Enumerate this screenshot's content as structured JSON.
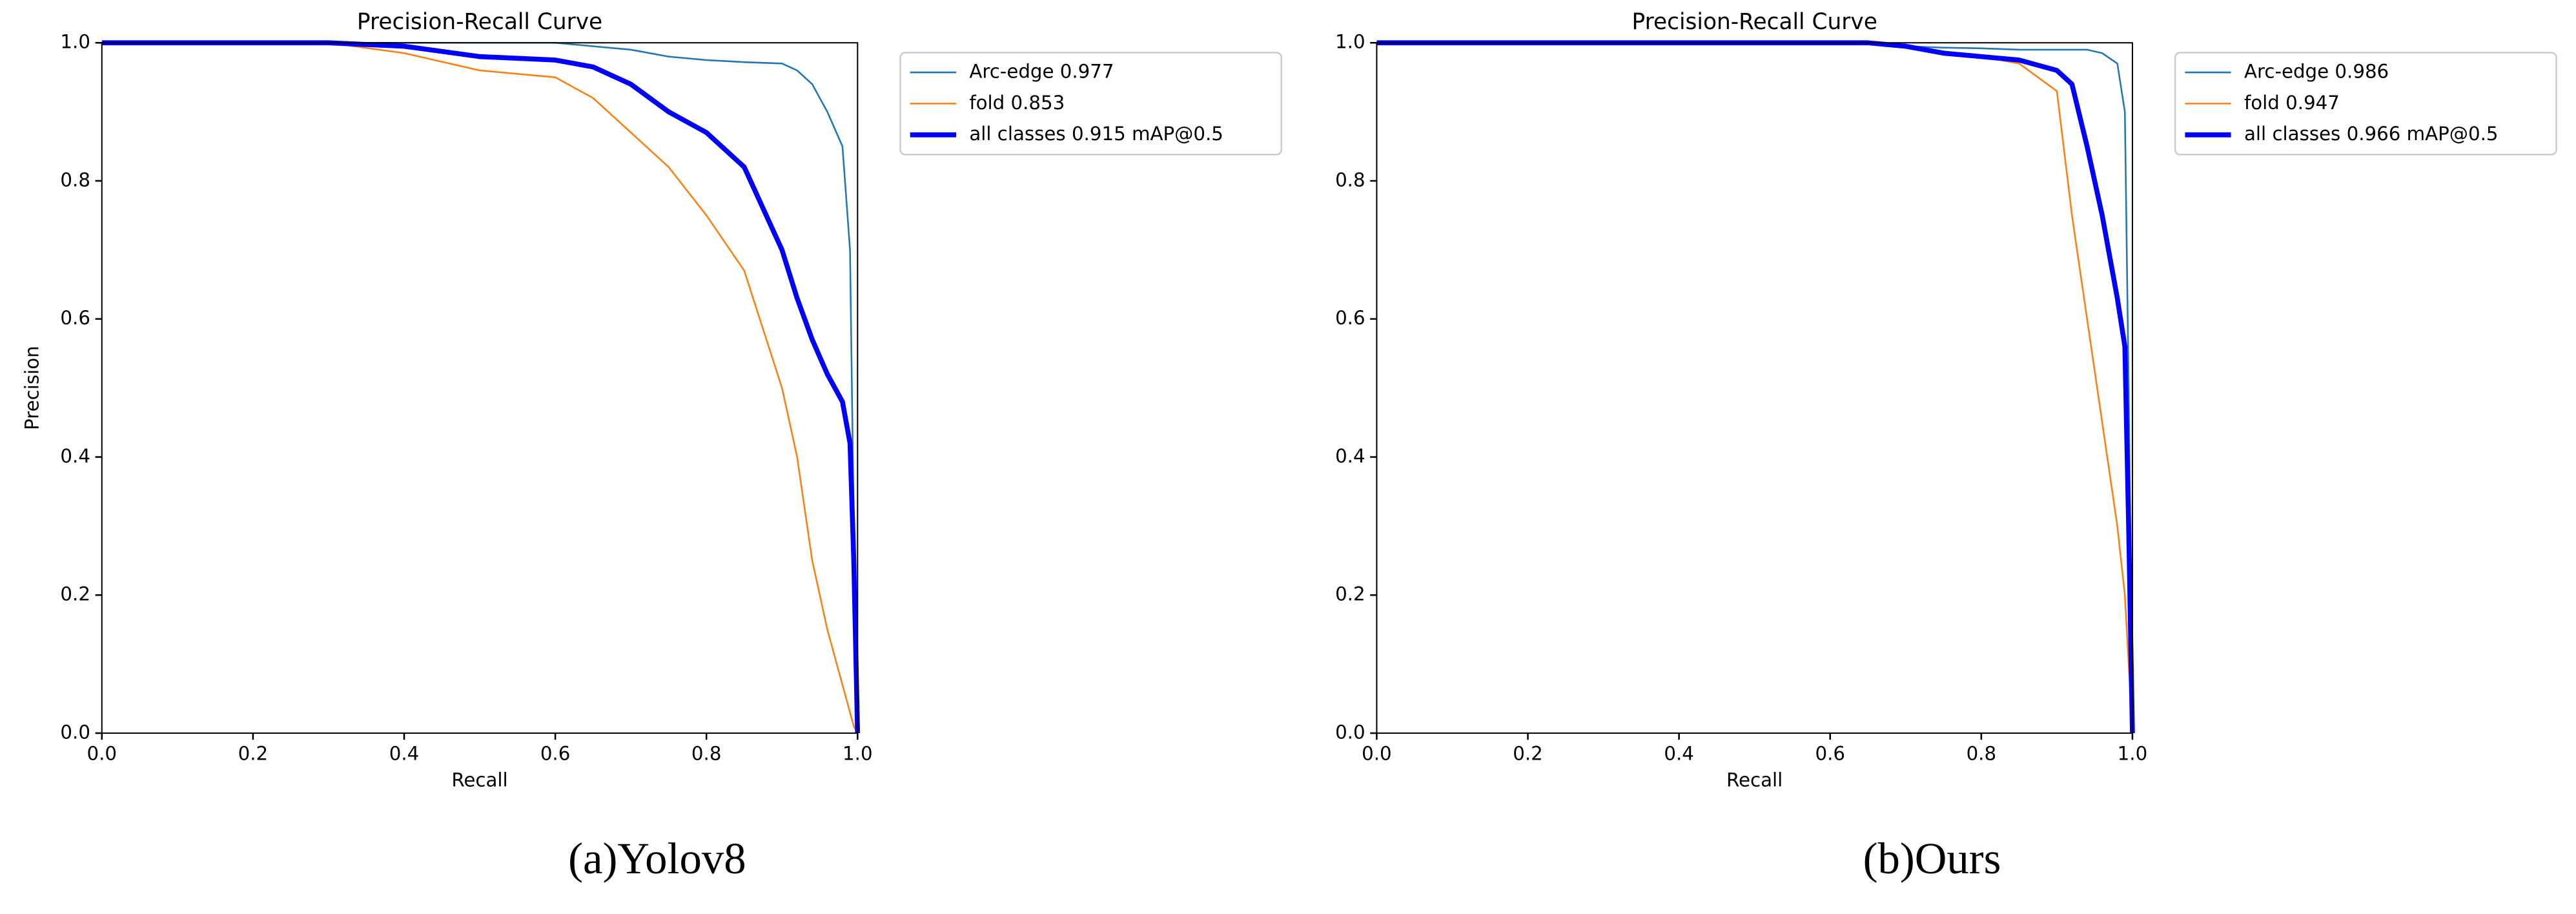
{
  "chart_data": [
    {
      "type": "line",
      "title": "Precision-Recall Curve",
      "xlabel": "Recall",
      "ylabel": "Precision",
      "caption": "(a)Yolov8",
      "x": [
        0,
        0.1,
        0.2,
        0.3,
        0.4,
        0.5,
        0.6,
        0.65,
        0.7,
        0.75,
        0.8,
        0.85,
        0.9,
        0.92,
        0.94,
        0.96,
        0.98,
        0.99,
        0.995,
        1.0
      ],
      "series": [
        {
          "name": "Arc-edge 0.977",
          "color": "#1f77b4",
          "width": 1,
          "values": [
            1,
            1,
            1,
            1,
            1,
            1,
            1,
            0.995,
            0.99,
            0.98,
            0.975,
            0.972,
            0.97,
            0.96,
            0.94,
            0.9,
            0.85,
            0.7,
            0.3,
            0
          ]
        },
        {
          "name": "fold 0.853",
          "color": "#ff7f0e",
          "width": 1,
          "values": [
            1,
            1,
            1,
            1,
            0.985,
            0.96,
            0.95,
            0.92,
            0.87,
            0.82,
            0.75,
            0.67,
            0.5,
            0.4,
            0.25,
            0.15,
            0.07,
            0.03,
            0.01,
            0
          ]
        },
        {
          "name": "all classes 0.915 mAP@0.5",
          "color": "#0000ff",
          "width": 3,
          "values": [
            1,
            1,
            1,
            1,
            0.995,
            0.98,
            0.975,
            0.965,
            0.94,
            0.9,
            0.87,
            0.82,
            0.7,
            0.63,
            0.57,
            0.52,
            0.48,
            0.42,
            0.25,
            0
          ]
        }
      ],
      "xlim": [
        0,
        1
      ],
      "ylim": [
        0,
        1
      ],
      "xticks": [
        {
          "value": 0,
          "label": "0.0"
        },
        0.2,
        0.4,
        0.6,
        0.8,
        {
          "value": 1,
          "label": "1.0"
        }
      ],
      "yticks": [
        {
          "value": 0,
          "label": "0.0"
        },
        0.2,
        0.4,
        0.6,
        0.8,
        {
          "value": 1,
          "label": "1.0"
        }
      ]
    },
    {
      "type": "line",
      "title": "Precision-Recall Curve",
      "xlabel": "Recall",
      "caption": "(b)Ours",
      "x": [
        0,
        0.1,
        0.2,
        0.3,
        0.4,
        0.5,
        0.6,
        0.65,
        0.7,
        0.75,
        0.8,
        0.85,
        0.9,
        0.92,
        0.94,
        0.96,
        0.98,
        0.99,
        0.995,
        1.0
      ],
      "series": [
        {
          "name": "Arc-edge 0.986",
          "color": "#1f77b4",
          "width": 1,
          "values": [
            1,
            1,
            1,
            1,
            1,
            1,
            1,
            1,
            0.995,
            0.993,
            0.992,
            0.99,
            0.99,
            0.99,
            0.99,
            0.985,
            0.97,
            0.9,
            0.5,
            0
          ]
        },
        {
          "name": "fold 0.947",
          "color": "#ff7f0e",
          "width": 1,
          "values": [
            1,
            1,
            1,
            1,
            1,
            1,
            1,
            1,
            0.995,
            0.985,
            0.98,
            0.97,
            0.93,
            0.75,
            0.6,
            0.45,
            0.3,
            0.2,
            0.1,
            0
          ]
        },
        {
          "name": "all classes 0.966 mAP@0.5",
          "color": "#0000ff",
          "width": 3,
          "values": [
            1,
            1,
            1,
            1,
            1,
            1,
            1,
            1,
            0.995,
            0.985,
            0.98,
            0.975,
            0.96,
            0.94,
            0.85,
            0.75,
            0.63,
            0.56,
            0.3,
            0
          ]
        }
      ],
      "xlim": [
        0,
        1
      ],
      "ylim": [
        0,
        1
      ],
      "xticks": [
        {
          "value": 0,
          "label": "0.0"
        },
        0.2,
        0.4,
        0.6,
        0.8,
        {
          "value": 1,
          "label": "1.0"
        }
      ],
      "yticks": [
        {
          "value": 0,
          "label": "0.0"
        },
        0.2,
        0.4,
        0.6,
        0.8,
        {
          "value": 1,
          "label": "1.0"
        }
      ]
    }
  ]
}
